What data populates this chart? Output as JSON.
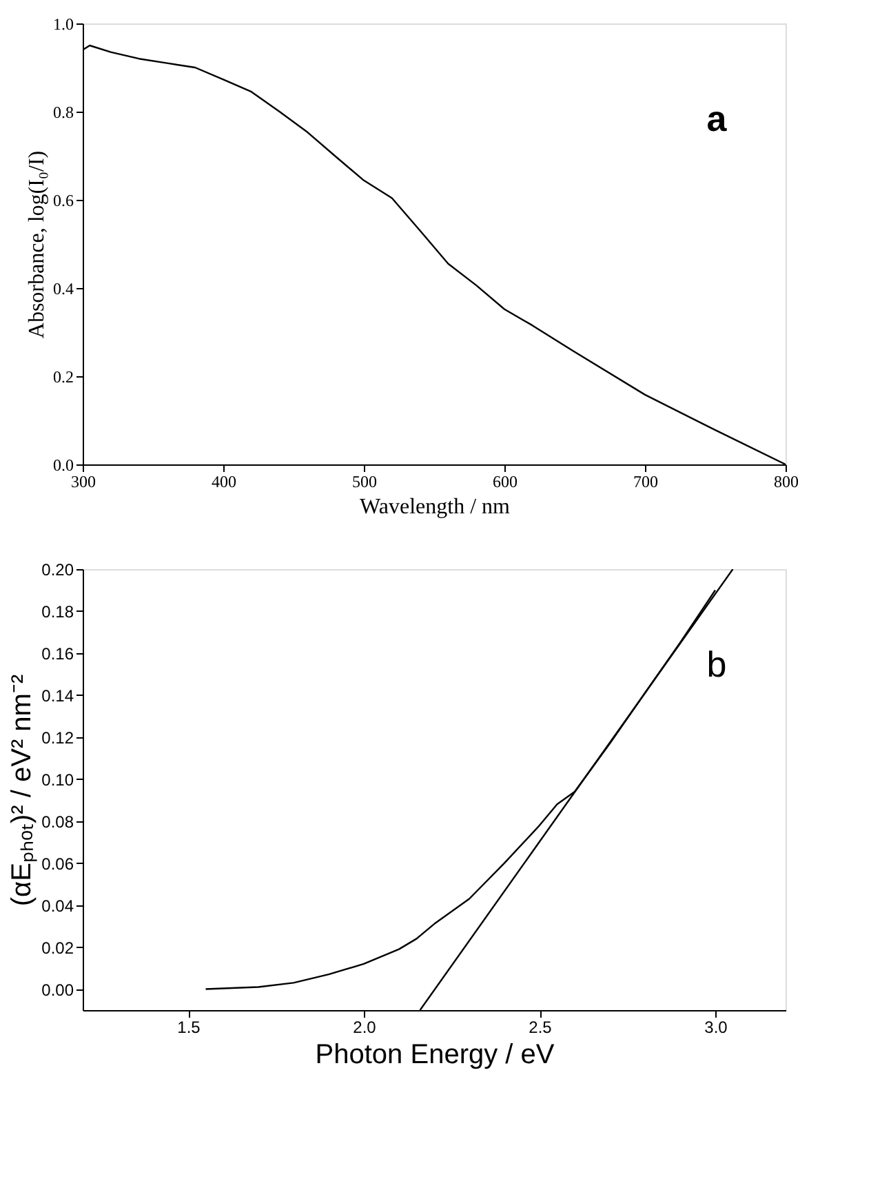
{
  "chart_data": [
    {
      "type": "line",
      "xlabel": "Wavelength / nm",
      "ylabel": "Absorbance, log(I₀/I)",
      "annotations": [
        "a"
      ],
      "xlim": [
        300,
        800
      ],
      "xticks": [
        300,
        400,
        500,
        600,
        700,
        800
      ],
      "ylim": [
        0,
        1.0
      ],
      "yticks": [
        {
          "value": 0,
          "label": "0.0"
        },
        0.2,
        0.4,
        0.6,
        0.8,
        {
          "value": 1,
          "label": "1.0"
        }
      ],
      "grid": false,
      "series": [
        {
          "color": "#000000",
          "x": [
            300,
            305,
            320,
            340,
            360,
            380,
            400,
            420,
            440,
            460,
            480,
            500,
            520,
            540,
            560,
            580,
            600,
            620,
            650,
            700,
            750,
            800
          ],
          "values": [
            0.94,
            0.95,
            0.935,
            0.92,
            0.91,
            0.9,
            0.873,
            0.845,
            0.8,
            0.753,
            0.698,
            0.644,
            0.604,
            0.53,
            0.455,
            0.406,
            0.352,
            0.315,
            0.255,
            0.158,
            0.078,
            0.0
          ]
        }
      ]
    },
    {
      "type": "line",
      "xlabel": "Photon Energy / eV",
      "ylabel": "(αEₚₕₒₜ)² / eV² nm⁻²",
      "annotations": [
        "b"
      ],
      "xlim": [
        1.2,
        3.2
      ],
      "xticks": [
        1.5,
        {
          "value": 2,
          "label": "2.0"
        },
        2.5,
        {
          "value": 3,
          "label": "3.0"
        }
      ],
      "ylim": [
        -0.01,
        0.2
      ],
      "yticks": [
        {
          "value": 0,
          "label": "0.00"
        },
        0.02,
        0.04,
        0.06,
        0.08,
        {
          "value": 0.1,
          "label": "0.10"
        },
        0.12,
        0.14,
        0.16,
        0.18,
        {
          "value": 0.2,
          "label": "0.20"
        }
      ],
      "grid": false,
      "series": [
        {
          "color": "#000000",
          "x": [
            1.55,
            1.7,
            1.8,
            1.9,
            2.0,
            2.1,
            2.15,
            2.2,
            2.3,
            2.4,
            2.5,
            2.55,
            2.6,
            2.7,
            2.8,
            2.9,
            3.0
          ],
          "values": [
            0.0,
            0.001,
            0.003,
            0.007,
            0.012,
            0.019,
            0.024,
            0.031,
            0.043,
            0.06,
            0.078,
            0.088,
            0.094,
            0.117,
            0.141,
            0.165,
            0.19
          ]
        },
        {
          "type": "line",
          "color": "#000000",
          "x": [
            2.16,
            3.05
          ],
          "values": [
            -0.01,
            0.2
          ]
        }
      ]
    }
  ]
}
